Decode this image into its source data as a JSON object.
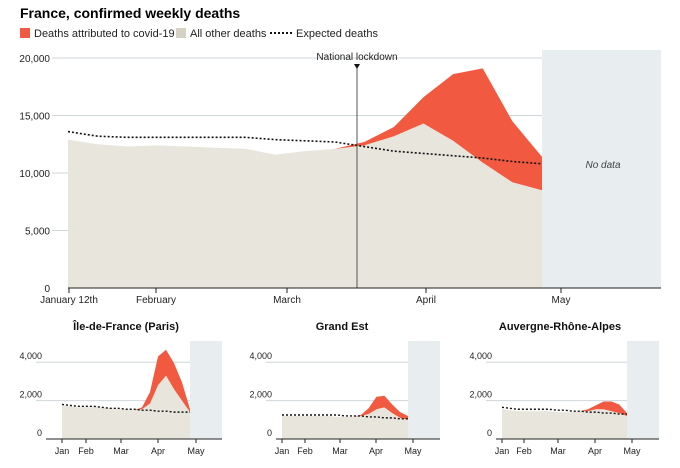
{
  "chart_data": [
    {
      "type": "area",
      "title": "France, confirmed weekly deaths",
      "legend": [
        {
          "label": "Deaths attributed to covid-19",
          "color": "#f15a40"
        },
        {
          "label": "All other deaths",
          "color": "#d5d1c4"
        },
        {
          "label": "Expected deaths",
          "color": "#111111",
          "style": "dotted"
        }
      ],
      "y_ticks": [
        "20,000",
        "15,000",
        "10,000",
        "5,000",
        "0"
      ],
      "ylim": [
        0,
        20000
      ],
      "x_labels": [
        "January 12th",
        "February",
        "March",
        "April",
        "May"
      ],
      "annotation": "National lockdown",
      "no_data_label": "No data",
      "grid": true,
      "x": [
        0,
        1,
        2,
        3,
        4,
        5,
        6,
        7,
        8,
        9,
        10,
        11,
        12,
        13,
        14,
        15,
        16
      ],
      "series": [
        {
          "name": "All other deaths",
          "values": [
            12900,
            12500,
            12300,
            12400,
            12300,
            12200,
            12100,
            11600,
            11900,
            12100,
            12400,
            13200,
            14300,
            12800,
            10900,
            9200,
            8500
          ]
        },
        {
          "name": "Deaths attributed to covid-19",
          "values": [
            0,
            0,
            0,
            0,
            0,
            0,
            0,
            0,
            0,
            0,
            300,
            800,
            2300,
            5800,
            8200,
            5300,
            2900
          ]
        },
        {
          "name": "Expected deaths",
          "values": [
            13600,
            13200,
            13100,
            13100,
            13100,
            13100,
            13100,
            12900,
            12800,
            12700,
            12300,
            11900,
            11700,
            11500,
            11300,
            11000,
            10800
          ]
        }
      ]
    },
    {
      "type": "area",
      "title": "Île-de-France (Paris)",
      "y_ticks": [
        "4,000",
        "2,000",
        "0"
      ],
      "ylim": [
        0,
        5000
      ],
      "x_labels": [
        "Jan",
        "Feb",
        "Mar",
        "Apr",
        "May"
      ],
      "x": [
        0,
        1,
        2,
        3,
        4,
        5,
        6,
        7,
        8,
        9,
        10,
        11,
        12,
        13,
        14,
        15,
        16
      ],
      "series": [
        {
          "name": "All other deaths",
          "values": [
            1750,
            1700,
            1650,
            1700,
            1700,
            1650,
            1600,
            1550,
            1550,
            1500,
            1550,
            1850,
            2800,
            3300,
            2600,
            2000,
            1400
          ]
        },
        {
          "name": "Deaths attributed to covid-19",
          "values": [
            0,
            0,
            0,
            0,
            0,
            0,
            0,
            0,
            0,
            0,
            100,
            600,
            1500,
            1350,
            1350,
            950,
            150
          ]
        },
        {
          "name": "Expected deaths",
          "values": [
            1800,
            1750,
            1700,
            1700,
            1700,
            1650,
            1600,
            1600,
            1550,
            1550,
            1500,
            1500,
            1450,
            1450,
            1400,
            1400,
            1400
          ]
        }
      ]
    },
    {
      "type": "area",
      "title": "Grand Est",
      "y_ticks": [
        "4,000",
        "2,000",
        "0"
      ],
      "ylim": [
        0,
        5000
      ],
      "x_labels": [
        "Jan",
        "Feb",
        "Mar",
        "Apr",
        "May"
      ],
      "x": [
        0,
        1,
        2,
        3,
        4,
        5,
        6,
        7,
        8,
        9,
        10,
        11,
        12,
        13,
        14,
        15,
        16
      ],
      "series": [
        {
          "name": "All other deaths",
          "values": [
            1200,
            1200,
            1200,
            1200,
            1200,
            1200,
            1200,
            1150,
            1150,
            1150,
            1200,
            1300,
            1550,
            1650,
            1350,
            1100,
            1000
          ]
        },
        {
          "name": "Deaths attributed to covid-19",
          "values": [
            0,
            0,
            0,
            0,
            0,
            0,
            0,
            0,
            0,
            0,
            50,
            300,
            650,
            600,
            450,
            300,
            200
          ]
        },
        {
          "name": "Expected deaths",
          "values": [
            1250,
            1250,
            1250,
            1250,
            1250,
            1250,
            1250,
            1250,
            1200,
            1200,
            1200,
            1150,
            1150,
            1100,
            1100,
            1050,
            1050
          ]
        }
      ]
    },
    {
      "type": "area",
      "title": "Auvergne-Rhône-Alpes",
      "y_ticks": [
        "4,000",
        "2,000",
        "0"
      ],
      "ylim": [
        0,
        5000
      ],
      "x_labels": [
        "Jan",
        "Feb",
        "Mar",
        "Apr",
        "May"
      ],
      "x": [
        0,
        1,
        2,
        3,
        4,
        5,
        6,
        7,
        8,
        9,
        10,
        11,
        12,
        13,
        14,
        15,
        16
      ],
      "series": [
        {
          "name": "All other deaths",
          "values": [
            1550,
            1500,
            1450,
            1450,
            1450,
            1450,
            1450,
            1400,
            1400,
            1400,
            1450,
            1450,
            1550,
            1550,
            1450,
            1350,
            1200
          ]
        },
        {
          "name": "Deaths attributed to covid-19",
          "values": [
            0,
            0,
            0,
            0,
            0,
            0,
            0,
            0,
            0,
            0,
            0,
            100,
            200,
            400,
            500,
            450,
            150
          ]
        },
        {
          "name": "Expected deaths",
          "values": [
            1650,
            1600,
            1550,
            1550,
            1550,
            1550,
            1550,
            1500,
            1500,
            1450,
            1450,
            1400,
            1400,
            1350,
            1350,
            1300,
            1300
          ]
        }
      ]
    }
  ]
}
